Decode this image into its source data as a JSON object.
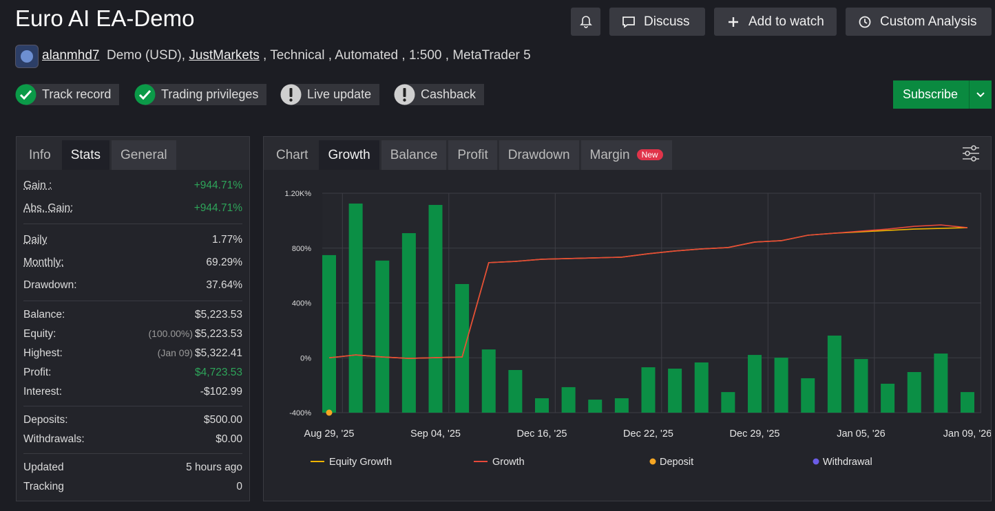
{
  "header": {
    "title": "Euro AI EA-Demo",
    "buttons": [
      "Discuss",
      "Add to watch",
      "Custom Analysis"
    ]
  },
  "account": {
    "user": "alanmhd7",
    "type": "Demo (USD),",
    "broker": "JustMarkets",
    "details": ", Technical , Automated , 1:500 , MetaTrader 5"
  },
  "badges": [
    {
      "label": "Track record",
      "checked": true
    },
    {
      "label": "Trading privileges",
      "checked": true
    },
    {
      "label": "Live update",
      "checked": false
    },
    {
      "label": "Cashback",
      "checked": false
    }
  ],
  "subscribe": "Subscribe",
  "stats": {
    "tabs": [
      "Info",
      "Stats",
      "General"
    ],
    "active_tab": 1,
    "groups": [
      [
        {
          "label": "Gain :",
          "value": "+944.71%",
          "color": "#2ea55a",
          "underline": true
        },
        {
          "label": "Abs. Gain:",
          "value": "+944.71%",
          "color": "#2ea55a",
          "underline": true
        }
      ],
      [
        {
          "label": "Daily",
          "value": "1.77%",
          "underline": true
        },
        {
          "label": "Monthly:",
          "value": "69.29%",
          "underline": true
        },
        {
          "label": "Drawdown:",
          "value": "37.64%"
        }
      ],
      [
        {
          "label": "Balance:",
          "value": "$5,223.53"
        },
        {
          "label": "Equity:",
          "note": "(100.00%)",
          "value": "$5,223.53"
        },
        {
          "label": "Highest:",
          "note": "(Jan 09)",
          "value": "$5,322.41"
        },
        {
          "label": "Profit:",
          "value": "$4,723.53",
          "color": "#2ea55a"
        },
        {
          "label": "Interest:",
          "value": "-$102.99"
        }
      ],
      [
        {
          "label": "Deposits:",
          "value": "$500.00"
        },
        {
          "label": "Withdrawals:",
          "value": "$0.00"
        }
      ],
      [
        {
          "label": "Updated",
          "value": "5 hours ago"
        },
        {
          "label": "Tracking",
          "value": "0"
        }
      ]
    ]
  },
  "chart_tabs": {
    "tabs": [
      "Chart",
      "Growth",
      "Balance",
      "Profit",
      "Drawdown",
      "Margin"
    ],
    "active_tab": 1,
    "new_badge": "New"
  },
  "chart_data": {
    "type": "bar",
    "categories": [
      "Aug 29, '25",
      null,
      null,
      null,
      "Sep 04, '25",
      null,
      null,
      null,
      "Dec 16, '25",
      null,
      null,
      null,
      "Dec 22, '25",
      null,
      null,
      null,
      "Dec 29, '25",
      null,
      null,
      null,
      "Jan 05, '26",
      null,
      null,
      null,
      "Jan 09, '26"
    ],
    "ylim": [
      -400,
      1200
    ],
    "yticks": [
      {
        "value": -400,
        "label": "-400%"
      },
      {
        "value": 0,
        "label": "0%"
      },
      {
        "value": 400,
        "label": "400%"
      },
      {
        "value": 800,
        "label": "800%"
      },
      {
        "value": 1200,
        "label": "1.20K%"
      }
    ],
    "grid": true,
    "bars": {
      "color": "#0b8f45",
      "values": [
        749,
        1125,
        709,
        909,
        1115,
        538,
        61,
        -89,
        -295,
        -214,
        -305,
        -295,
        -69,
        -79,
        -34,
        -250,
        21,
        1,
        -149,
        162,
        -9,
        -189,
        -104,
        31,
        -250
      ]
    },
    "series": [
      {
        "name": "Equity Growth",
        "type": "line",
        "color": "#f0b400",
        "values": [
          0,
          21,
          6,
          -4,
          1,
          6,
          694,
          703,
          719,
          724,
          729,
          734,
          759,
          779,
          794,
          804,
          844,
          854,
          894,
          909,
          919,
          929,
          939,
          944,
          949
        ]
      },
      {
        "name": "Growth",
        "type": "line",
        "color": "#e8493a",
        "values": [
          0,
          21,
          6,
          -4,
          1,
          6,
          694,
          703,
          719,
          724,
          729,
          734,
          759,
          779,
          794,
          804,
          844,
          854,
          894,
          909,
          924,
          939,
          959,
          969,
          949
        ]
      },
      {
        "name": "Deposit",
        "type": "scatter",
        "color": "#f5a623",
        "values": [
          -400,
          null,
          null,
          null,
          null,
          null,
          null,
          null,
          null,
          null,
          null,
          null,
          null,
          null,
          null,
          null,
          null,
          null,
          null,
          null,
          null,
          null,
          null,
          null,
          null
        ]
      },
      {
        "name": "Withdrawal",
        "type": "scatter",
        "color": "#6b5ce7",
        "values": [
          null,
          null,
          null,
          null,
          null,
          null,
          null,
          null,
          null,
          null,
          null,
          null,
          null,
          null,
          null,
          null,
          null,
          null,
          null,
          null,
          null,
          null,
          null,
          null,
          null
        ]
      }
    ]
  }
}
